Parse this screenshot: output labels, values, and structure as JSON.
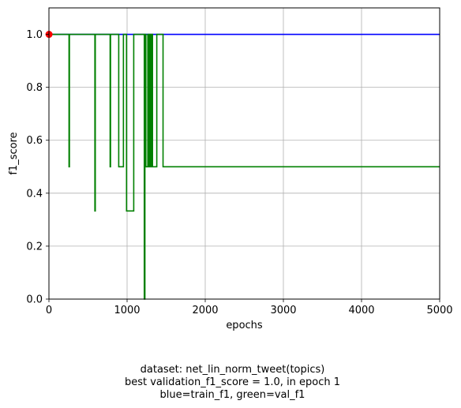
{
  "chart_data": {
    "type": "line",
    "title": "",
    "xlabel": "epochs",
    "ylabel": "f1_score",
    "xlim": [
      0,
      5000
    ],
    "ylim": [
      0,
      1.1
    ],
    "x_ticks": [
      0,
      1000,
      2000,
      3000,
      4000,
      5000
    ],
    "y_ticks": [
      0.0,
      0.2,
      0.4,
      0.6,
      0.8,
      1.0
    ],
    "x_tick_labels": [
      "0",
      "1000",
      "2000",
      "3000",
      "4000",
      "5000"
    ],
    "y_tick_labels": [
      "0.0",
      "0.2",
      "0.4",
      "0.6",
      "0.8",
      "1.0"
    ],
    "grid": true,
    "series": [
      {
        "color": "#0000ff",
        "step": true,
        "points": [
          [
            0,
            1.0
          ],
          [
            5000,
            1.0
          ]
        ]
      },
      {
        "color": "#008000",
        "step": true,
        "points": [
          [
            0,
            1.0
          ],
          [
            257,
            1.0
          ],
          [
            257,
            0.5
          ],
          [
            262,
            0.5
          ],
          [
            262,
            1.0
          ],
          [
            588,
            1.0
          ],
          [
            588,
            0.333
          ],
          [
            593,
            0.333
          ],
          [
            593,
            1.0
          ],
          [
            783,
            1.0
          ],
          [
            783,
            0.5
          ],
          [
            788,
            0.5
          ],
          [
            788,
            1.0
          ],
          [
            893,
            1.0
          ],
          [
            893,
            0.5
          ],
          [
            953,
            0.5
          ],
          [
            953,
            1.0
          ],
          [
            993,
            1.0
          ],
          [
            993,
            0.333
          ],
          [
            1085,
            0.333
          ],
          [
            1085,
            1.0
          ],
          [
            1220,
            1.0
          ],
          [
            1220,
            0.0
          ],
          [
            1228,
            0.0
          ],
          [
            1228,
            1.0
          ],
          [
            1240,
            1.0
          ],
          [
            1240,
            0.5
          ],
          [
            1265,
            0.5
          ],
          [
            1265,
            1.0
          ],
          [
            1280,
            1.0
          ],
          [
            1280,
            0.5
          ],
          [
            1290,
            0.5
          ],
          [
            1290,
            1.0
          ],
          [
            1300,
            1.0
          ],
          [
            1300,
            0.5
          ],
          [
            1310,
            0.5
          ],
          [
            1310,
            1.0
          ],
          [
            1325,
            1.0
          ],
          [
            1325,
            0.5
          ],
          [
            1380,
            0.5
          ],
          [
            1380,
            1.0
          ],
          [
            1460,
            1.0
          ],
          [
            1460,
            0.5
          ],
          [
            5000,
            0.5
          ]
        ]
      }
    ],
    "markers": [
      {
        "x": 1,
        "y": 1.0,
        "color": "#ff0000"
      }
    ],
    "caption": [
      "dataset: net_lin_norm_tweet(topics)",
      "best validation_f1_score = 1.0, in epoch 1",
      "blue=train_f1, green=val_f1"
    ]
  }
}
